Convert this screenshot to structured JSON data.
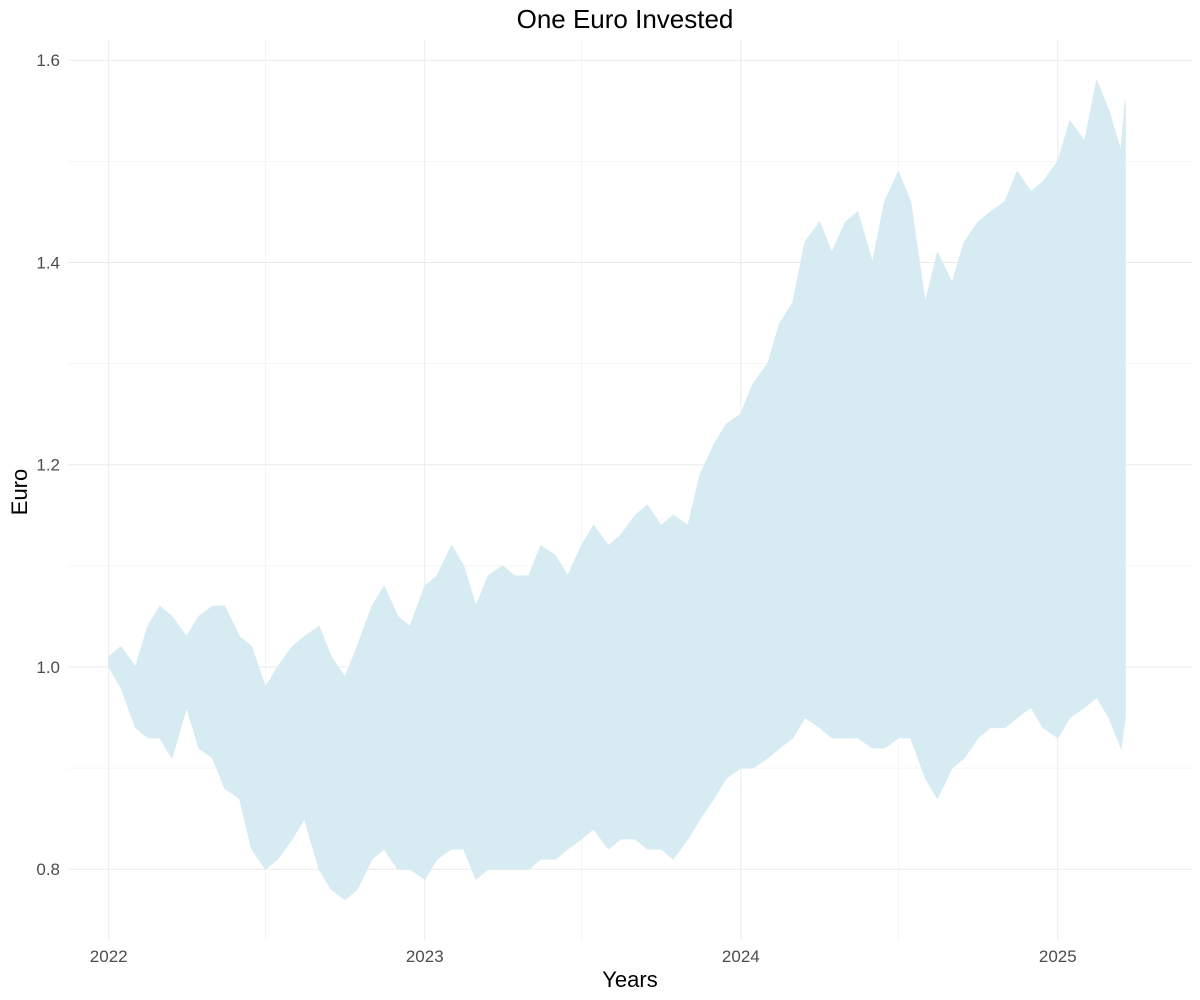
{
  "chart_data": {
    "type": "area",
    "title": "One Euro Invested",
    "xlabel": "Years",
    "ylabel": "Euro",
    "fill_color": "#d6ebf2",
    "grid": true,
    "legend": "none",
    "xlim": [
      "2021-11-15",
      "2025-06-05"
    ],
    "ylim": [
      0.73,
      1.62
    ],
    "x_ticks": [
      "2022",
      "2023",
      "2024",
      "2025"
    ],
    "x_minor_ticks": [
      "2022-07-01",
      "2023-07-01",
      "2024-07-01"
    ],
    "y_ticks": [
      0.8,
      1.0,
      1.2,
      1.4,
      1.6
    ],
    "y_tick_labels": [
      "0.8",
      "1.0",
      "1.2",
      "1.4",
      "1.6"
    ],
    "y_minor_ticks": [
      0.9,
      1.1,
      1.3,
      1.5
    ],
    "series": [
      {
        "role": "upper",
        "points": [
          [
            "2022-01-01",
            1.01
          ],
          [
            "2022-01-15",
            1.02
          ],
          [
            "2022-02-01",
            1.0
          ],
          [
            "2022-02-15",
            1.04
          ],
          [
            "2022-03-01",
            1.06
          ],
          [
            "2022-03-15",
            1.05
          ],
          [
            "2022-04-01",
            1.03
          ],
          [
            "2022-04-15",
            1.05
          ],
          [
            "2022-05-01",
            1.06
          ],
          [
            "2022-05-15",
            1.06
          ],
          [
            "2022-06-01",
            1.03
          ],
          [
            "2022-06-15",
            1.02
          ],
          [
            "2022-07-01",
            0.98
          ],
          [
            "2022-07-15",
            1.0
          ],
          [
            "2022-08-01",
            1.02
          ],
          [
            "2022-08-15",
            1.03
          ],
          [
            "2022-09-01",
            1.04
          ],
          [
            "2022-09-15",
            1.01
          ],
          [
            "2022-10-01",
            0.99
          ],
          [
            "2022-10-15",
            1.02
          ],
          [
            "2022-11-01",
            1.06
          ],
          [
            "2022-11-15",
            1.08
          ],
          [
            "2022-12-01",
            1.05
          ],
          [
            "2022-12-15",
            1.04
          ],
          [
            "2023-01-01",
            1.08
          ],
          [
            "2023-01-15",
            1.09
          ],
          [
            "2023-02-01",
            1.12
          ],
          [
            "2023-02-15",
            1.1
          ],
          [
            "2023-03-01",
            1.06
          ],
          [
            "2023-03-15",
            1.09
          ],
          [
            "2023-04-01",
            1.1
          ],
          [
            "2023-04-15",
            1.09
          ],
          [
            "2023-05-01",
            1.09
          ],
          [
            "2023-05-15",
            1.12
          ],
          [
            "2023-06-01",
            1.11
          ],
          [
            "2023-06-15",
            1.09
          ],
          [
            "2023-07-01",
            1.12
          ],
          [
            "2023-07-15",
            1.14
          ],
          [
            "2023-08-01",
            1.12
          ],
          [
            "2023-08-15",
            1.13
          ],
          [
            "2023-09-01",
            1.15
          ],
          [
            "2023-09-15",
            1.16
          ],
          [
            "2023-10-01",
            1.14
          ],
          [
            "2023-10-15",
            1.15
          ],
          [
            "2023-11-01",
            1.14
          ],
          [
            "2023-11-15",
            1.19
          ],
          [
            "2023-12-01",
            1.22
          ],
          [
            "2023-12-15",
            1.24
          ],
          [
            "2024-01-01",
            1.25
          ],
          [
            "2024-01-15",
            1.28
          ],
          [
            "2024-02-01",
            1.3
          ],
          [
            "2024-02-15",
            1.34
          ],
          [
            "2024-03-01",
            1.36
          ],
          [
            "2024-03-15",
            1.42
          ],
          [
            "2024-04-01",
            1.44
          ],
          [
            "2024-04-15",
            1.41
          ],
          [
            "2024-05-01",
            1.44
          ],
          [
            "2024-05-15",
            1.45
          ],
          [
            "2024-06-01",
            1.4
          ],
          [
            "2024-06-15",
            1.46
          ],
          [
            "2024-07-01",
            1.49
          ],
          [
            "2024-07-15",
            1.46
          ],
          [
            "2024-08-01",
            1.36
          ],
          [
            "2024-08-15",
            1.41
          ],
          [
            "2024-09-01",
            1.38
          ],
          [
            "2024-09-15",
            1.42
          ],
          [
            "2024-10-01",
            1.44
          ],
          [
            "2024-10-15",
            1.45
          ],
          [
            "2024-11-01",
            1.46
          ],
          [
            "2024-11-15",
            1.49
          ],
          [
            "2024-12-01",
            1.47
          ],
          [
            "2024-12-15",
            1.48
          ],
          [
            "2025-01-01",
            1.5
          ],
          [
            "2025-01-15",
            1.54
          ],
          [
            "2025-02-01",
            1.52
          ],
          [
            "2025-02-15",
            1.58
          ],
          [
            "2025-03-01",
            1.55
          ],
          [
            "2025-03-15",
            1.51
          ],
          [
            "2025-03-20",
            1.56
          ]
        ]
      },
      {
        "role": "lower",
        "points": [
          [
            "2022-01-01",
            1.0
          ],
          [
            "2022-01-15",
            0.98
          ],
          [
            "2022-02-01",
            0.94
          ],
          [
            "2022-02-15",
            0.93
          ],
          [
            "2022-03-01",
            0.93
          ],
          [
            "2022-03-15",
            0.91
          ],
          [
            "2022-04-01",
            0.96
          ],
          [
            "2022-04-15",
            0.92
          ],
          [
            "2022-05-01",
            0.91
          ],
          [
            "2022-05-15",
            0.88
          ],
          [
            "2022-06-01",
            0.87
          ],
          [
            "2022-06-15",
            0.82
          ],
          [
            "2022-07-01",
            0.8
          ],
          [
            "2022-07-15",
            0.81
          ],
          [
            "2022-08-01",
            0.83
          ],
          [
            "2022-08-15",
            0.85
          ],
          [
            "2022-09-01",
            0.8
          ],
          [
            "2022-09-15",
            0.78
          ],
          [
            "2022-10-01",
            0.77
          ],
          [
            "2022-10-15",
            0.78
          ],
          [
            "2022-11-01",
            0.81
          ],
          [
            "2022-11-15",
            0.82
          ],
          [
            "2022-12-01",
            0.8
          ],
          [
            "2022-12-15",
            0.8
          ],
          [
            "2023-01-01",
            0.79
          ],
          [
            "2023-01-15",
            0.81
          ],
          [
            "2023-02-01",
            0.82
          ],
          [
            "2023-02-15",
            0.82
          ],
          [
            "2023-03-01",
            0.79
          ],
          [
            "2023-03-15",
            0.8
          ],
          [
            "2023-04-01",
            0.8
          ],
          [
            "2023-04-15",
            0.8
          ],
          [
            "2023-05-01",
            0.8
          ],
          [
            "2023-05-15",
            0.81
          ],
          [
            "2023-06-01",
            0.81
          ],
          [
            "2023-06-15",
            0.82
          ],
          [
            "2023-07-01",
            0.83
          ],
          [
            "2023-07-15",
            0.84
          ],
          [
            "2023-08-01",
            0.82
          ],
          [
            "2023-08-15",
            0.83
          ],
          [
            "2023-09-01",
            0.83
          ],
          [
            "2023-09-15",
            0.82
          ],
          [
            "2023-10-01",
            0.82
          ],
          [
            "2023-10-15",
            0.81
          ],
          [
            "2023-11-01",
            0.83
          ],
          [
            "2023-11-15",
            0.85
          ],
          [
            "2023-12-01",
            0.87
          ],
          [
            "2023-12-15",
            0.89
          ],
          [
            "2024-01-01",
            0.9
          ],
          [
            "2024-01-15",
            0.9
          ],
          [
            "2024-02-01",
            0.91
          ],
          [
            "2024-02-15",
            0.92
          ],
          [
            "2024-03-01",
            0.93
          ],
          [
            "2024-03-15",
            0.95
          ],
          [
            "2024-04-01",
            0.94
          ],
          [
            "2024-04-15",
            0.93
          ],
          [
            "2024-05-01",
            0.93
          ],
          [
            "2024-05-15",
            0.93
          ],
          [
            "2024-06-01",
            0.92
          ],
          [
            "2024-06-15",
            0.92
          ],
          [
            "2024-07-01",
            0.93
          ],
          [
            "2024-07-15",
            0.93
          ],
          [
            "2024-08-01",
            0.89
          ],
          [
            "2024-08-15",
            0.87
          ],
          [
            "2024-09-01",
            0.9
          ],
          [
            "2024-09-15",
            0.91
          ],
          [
            "2024-10-01",
            0.93
          ],
          [
            "2024-10-15",
            0.94
          ],
          [
            "2024-11-01",
            0.94
          ],
          [
            "2024-11-15",
            0.95
          ],
          [
            "2024-12-01",
            0.96
          ],
          [
            "2024-12-15",
            0.94
          ],
          [
            "2025-01-01",
            0.93
          ],
          [
            "2025-01-15",
            0.95
          ],
          [
            "2025-02-01",
            0.96
          ],
          [
            "2025-02-15",
            0.97
          ],
          [
            "2025-03-01",
            0.95
          ],
          [
            "2025-03-15",
            0.92
          ],
          [
            "2025-03-20",
            0.95
          ]
        ]
      }
    ]
  }
}
